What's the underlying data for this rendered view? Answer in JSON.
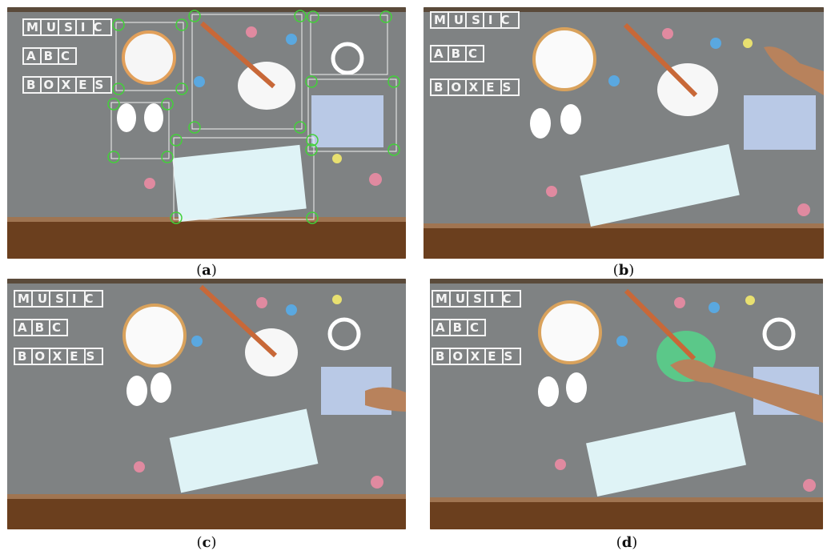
{
  "figure": {
    "panels": [
      {
        "id": "a",
        "caption": "a",
        "title_rows": [
          "MUSIC",
          "ABC",
          "BOXES"
        ],
        "grid_overlay": true,
        "hand": "none"
      },
      {
        "id": "b",
        "caption": "b",
        "title_rows": [
          "MUSIC",
          "ABC",
          "BOXES"
        ],
        "grid_overlay": false,
        "hand": "top-right"
      },
      {
        "id": "c",
        "caption": "c",
        "title_rows": [
          "MUSIC",
          "ABC",
          "BOXES"
        ],
        "grid_overlay": false,
        "hand": "right-accordion"
      },
      {
        "id": "d",
        "caption": "d",
        "title_rows": [
          "MUSIC",
          "ABC",
          "BOXES"
        ],
        "grid_overlay": false,
        "hand": "center-mandolin"
      }
    ]
  },
  "colors": {
    "board": "#7f8283",
    "wood": "#6b3f1e",
    "grid": "#f2f2f2",
    "tracker": "#43d13a",
    "note_pink": "#e08aa0",
    "note_blue": "#5aa8e0",
    "note_yellow": "#e8e070",
    "xylophone_bar": "#dff3f6",
    "accordion": "#b9c9e6",
    "skin": "#b8825c"
  }
}
